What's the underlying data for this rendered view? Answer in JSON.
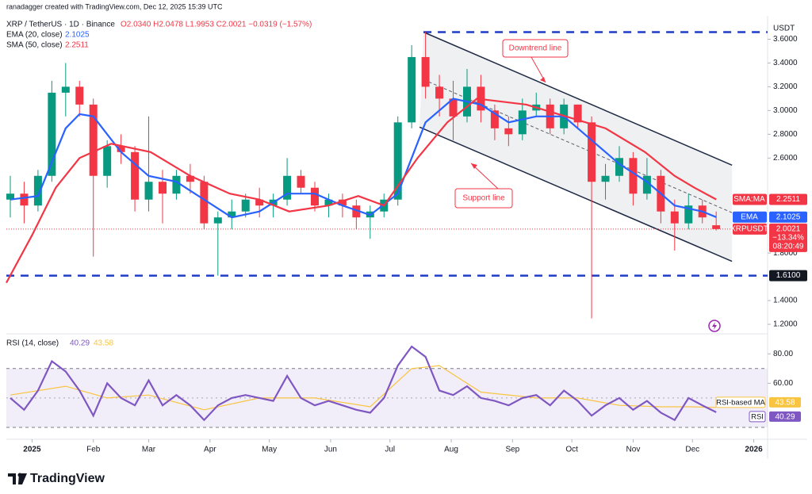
{
  "header": {
    "credit": "ranadagger created with TradingView.com, Dec 12, 2025 15:39 UTC",
    "symbol": "XRP / TetherUS · 1D · Binance",
    "ohlc": "O2.0340 H2.0478 L1.9953 C2.0021 −0.0319 (−1.57%)",
    "currency": "USDT"
  },
  "chart_data": [
    {
      "type": "candlestick",
      "name": "XRPUSDT",
      "x": [
        -11,
        -4,
        3,
        10,
        17,
        24,
        31,
        38,
        45,
        52,
        59,
        66,
        73,
        80,
        87,
        94,
        101,
        108,
        115,
        122,
        129,
        136,
        143,
        150,
        157,
        164,
        171,
        178,
        185,
        192,
        199,
        206,
        213,
        220,
        227,
        234,
        241,
        248,
        255,
        262,
        269,
        276,
        283,
        290,
        297,
        304,
        311,
        318,
        325,
        332,
        339,
        346
      ],
      "open": [
        2.25,
        2.3,
        2.2,
        2.45,
        3.15,
        3.2,
        3.05,
        2.45,
        2.7,
        2.65,
        2.25,
        2.4,
        2.3,
        2.45,
        2.4,
        2.05,
        2.1,
        2.15,
        2.25,
        2.2,
        2.25,
        2.45,
        2.35,
        2.2,
        2.25,
        2.2,
        2.1,
        2.15,
        2.25,
        2.9,
        3.45,
        3.2,
        3.1,
        2.95,
        3.2,
        3.0,
        2.85,
        2.8,
        3.0,
        3.05,
        2.85,
        3.05,
        2.9,
        2.4,
        2.45,
        2.6,
        2.3,
        2.45,
        2.15,
        2.05,
        2.2,
        2.034
      ],
      "high": [
        2.45,
        2.4,
        2.5,
        3.25,
        3.4,
        3.25,
        3.1,
        2.75,
        2.8,
        2.7,
        2.95,
        2.5,
        2.5,
        2.55,
        2.45,
        2.15,
        2.25,
        2.3,
        2.35,
        2.3,
        2.6,
        2.5,
        2.4,
        2.3,
        2.3,
        2.25,
        2.2,
        2.3,
        2.95,
        3.55,
        3.66,
        3.3,
        3.25,
        3.35,
        3.3,
        3.05,
        2.95,
        3.1,
        3.15,
        3.1,
        3.1,
        3.05,
        2.95,
        2.55,
        2.7,
        2.65,
        2.6,
        2.5,
        2.25,
        2.3,
        2.25,
        2.15
      ],
      "low": [
        2.1,
        2.05,
        2.15,
        2.4,
        2.95,
        2.95,
        1.77,
        2.35,
        2.55,
        2.15,
        2.15,
        2.05,
        2.25,
        2.3,
        2.0,
        1.61,
        2.0,
        2.1,
        2.1,
        2.1,
        2.2,
        2.3,
        2.15,
        2.1,
        2.1,
        2.0,
        1.92,
        2.1,
        2.2,
        2.85,
        3.1,
        2.95,
        2.75,
        2.9,
        2.9,
        2.75,
        2.7,
        2.75,
        2.95,
        2.8,
        2.8,
        2.85,
        1.25,
        2.25,
        2.4,
        2.2,
        2.25,
        2.05,
        1.82,
        2.0,
        2.05,
        1.99
      ],
      "close": [
        2.3,
        2.2,
        2.45,
        3.15,
        3.2,
        3.05,
        2.45,
        2.7,
        2.65,
        2.25,
        2.4,
        2.3,
        2.45,
        2.4,
        2.05,
        2.1,
        2.15,
        2.25,
        2.2,
        2.25,
        2.45,
        2.35,
        2.2,
        2.25,
        2.2,
        2.1,
        2.15,
        2.25,
        2.9,
        3.45,
        3.2,
        3.1,
        2.95,
        3.2,
        3.0,
        2.85,
        2.8,
        3.0,
        3.05,
        2.85,
        3.05,
        2.9,
        2.4,
        2.45,
        2.6,
        2.3,
        2.45,
        2.15,
        2.05,
        2.2,
        2.1,
        2.0021
      ],
      "colors": {
        "up": "#089981",
        "down": "#f23645"
      },
      "last_label": "2.0021",
      "change_label": "−13.34%",
      "countdown": "08:20:49",
      "overlays": [
        {
          "name": "EMA (20, close)",
          "tag": "EMA",
          "color": "#2962ff",
          "last_label": "2.1025",
          "x": [
            -11,
            3,
            17,
            24,
            31,
            45,
            59,
            73,
            87,
            101,
            115,
            129,
            143,
            157,
            171,
            185,
            199,
            213,
            227,
            241,
            255,
            269,
            283,
            297,
            311,
            325,
            339,
            346
          ],
          "values": [
            2.25,
            2.28,
            2.85,
            2.97,
            2.95,
            2.65,
            2.45,
            2.4,
            2.25,
            2.1,
            2.15,
            2.3,
            2.3,
            2.2,
            2.12,
            2.3,
            2.9,
            3.1,
            3.05,
            2.9,
            2.95,
            2.95,
            2.75,
            2.55,
            2.4,
            2.2,
            2.15,
            2.1025
          ]
        },
        {
          "name": "SMA (50, close)",
          "tag": "SMA:MA",
          "color": "#f23645",
          "last_label": "2.2511",
          "x": [
            -13,
            0,
            12,
            24,
            40,
            60,
            80,
            100,
            115,
            130,
            150,
            165,
            178,
            195,
            210,
            225,
            250,
            270,
            290,
            310,
            325,
            335,
            346
          ],
          "values": [
            1.55,
            1.95,
            2.35,
            2.6,
            2.72,
            2.65,
            2.45,
            2.3,
            2.25,
            2.15,
            2.2,
            2.28,
            2.2,
            2.6,
            2.9,
            3.1,
            3.05,
            2.95,
            2.85,
            2.65,
            2.45,
            2.35,
            2.2511
          ]
        }
      ],
      "trendlines": [
        {
          "x": [
            198,
            354
          ],
          "values": [
            3.66,
            2.54
          ],
          "style": "solid"
        },
        {
          "x": [
            196,
            354
          ],
          "values": [
            2.86,
            1.73
          ],
          "style": "solid"
        },
        {
          "x": [
            198,
            354
          ],
          "values": [
            3.26,
            2.14
          ],
          "style": "dashed"
        }
      ],
      "hlines": [
        {
          "value": 3.66,
          "from": 198
        },
        {
          "value": 1.61,
          "from": -13,
          "label": "1.6100"
        }
      ],
      "annotations": [
        {
          "text": "Downtrend line"
        },
        {
          "text": "Support line"
        }
      ],
      "xlim": [
        -13,
        372
      ],
      "ylim": [
        1.14,
        3.73
      ],
      "xticks": [
        {
          "value": 0,
          "label": "2025"
        },
        {
          "value": 31,
          "label": "Feb"
        },
        {
          "value": 59,
          "label": "Mar"
        },
        {
          "value": 90,
          "label": "Apr"
        },
        {
          "value": 120,
          "label": "May"
        },
        {
          "value": 151,
          "label": "Jun"
        },
        {
          "value": 181,
          "label": "Jul"
        },
        {
          "value": 212,
          "label": "Aug"
        },
        {
          "value": 243,
          "label": "Sep"
        },
        {
          "value": 273,
          "label": "Oct"
        },
        {
          "value": 304,
          "label": "Nov"
        },
        {
          "value": 334,
          "label": "Dec"
        },
        {
          "value": 365,
          "label": "2026"
        }
      ],
      "yticks": [
        {
          "value": 1.2,
          "label": "1.2000"
        },
        {
          "value": 1.4,
          "label": "1.4000"
        },
        {
          "value": 1.8,
          "label": "1.8000"
        },
        {
          "value": 2.6,
          "label": "2.6000"
        },
        {
          "value": 2.8,
          "label": "2.8000"
        },
        {
          "value": 3.0,
          "label": "3.0000"
        },
        {
          "value": 3.2,
          "label": "3.2000"
        },
        {
          "value": 3.4,
          "label": "3.4000"
        },
        {
          "value": 3.6,
          "label": "3.6000"
        }
      ]
    },
    {
      "type": "line",
      "title": "RSI (14, close)",
      "series": [
        {
          "name": "RSI",
          "color": "#7e57c2",
          "last_label": "40.29",
          "x": [
            -11,
            -4,
            3,
            10,
            17,
            24,
            31,
            38,
            45,
            52,
            59,
            66,
            73,
            80,
            87,
            94,
            101,
            108,
            115,
            122,
            129,
            136,
            143,
            150,
            157,
            164,
            171,
            178,
            185,
            192,
            199,
            206,
            213,
            220,
            227,
            234,
            241,
            248,
            255,
            262,
            269,
            276,
            283,
            290,
            297,
            304,
            311,
            318,
            325,
            332,
            339,
            346
          ],
          "values": [
            50,
            42,
            55,
            75,
            68,
            55,
            38,
            60,
            50,
            45,
            62,
            45,
            52,
            45,
            35,
            45,
            50,
            52,
            50,
            48,
            65,
            50,
            45,
            48,
            45,
            42,
            40,
            50,
            72,
            85,
            78,
            55,
            52,
            58,
            50,
            48,
            45,
            50,
            52,
            45,
            55,
            48,
            38,
            45,
            50,
            42,
            48,
            40,
            35,
            50,
            45,
            40.29
          ]
        },
        {
          "name": "RSI-based MA",
          "color": "#f9c440",
          "last_label": "43.58",
          "x": [
            -11,
            17,
            38,
            59,
            87,
            115,
            143,
            171,
            192,
            206,
            227,
            255,
            276,
            297,
            318,
            332,
            346
          ],
          "values": [
            52,
            58,
            50,
            52,
            42,
            50,
            50,
            44,
            70,
            72,
            54,
            50,
            50,
            45,
            44,
            44,
            43.58
          ]
        }
      ],
      "band": [
        30,
        70
      ],
      "midline": 50,
      "ylim": [
        23,
        92
      ],
      "yticks": [
        {
          "value": 80,
          "label": "80.00"
        },
        {
          "value": 60,
          "label": "60.00"
        }
      ]
    }
  ],
  "footer": {
    "brand": "TradingView"
  }
}
